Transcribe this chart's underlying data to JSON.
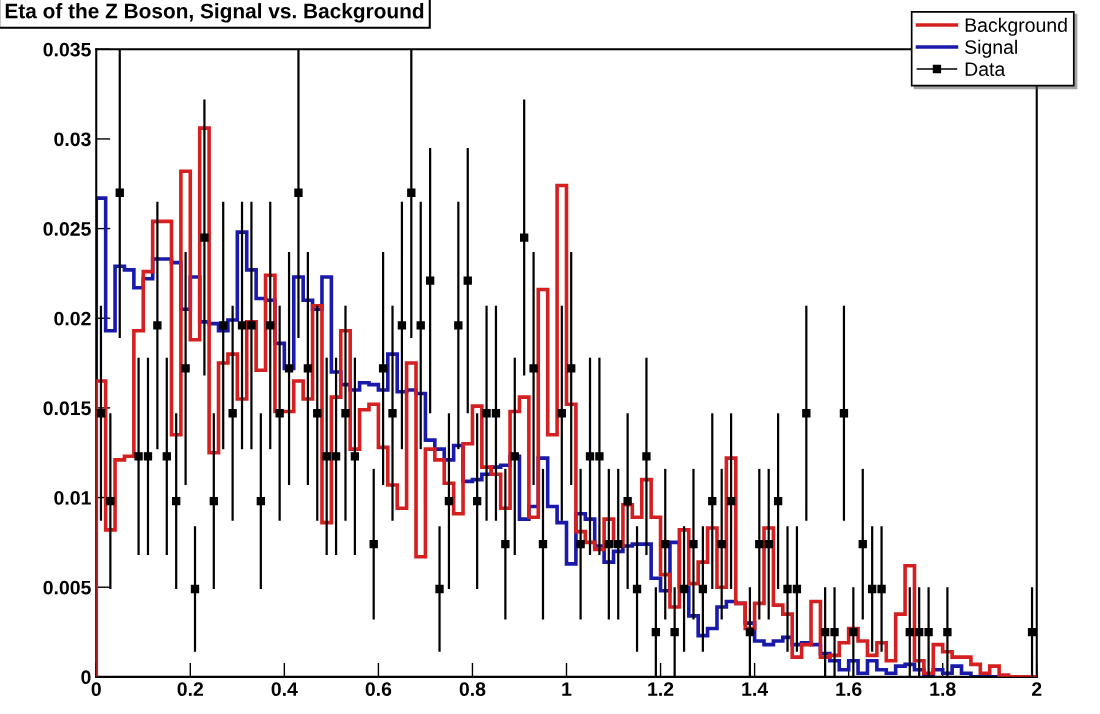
{
  "chart_data": {
    "type": "histogram",
    "title": "Eta of the Z Boson, Signal vs. Background",
    "bins": [
      0,
      0.02,
      0.04,
      0.06,
      0.08,
      0.1,
      0.12,
      0.14,
      0.16,
      0.18,
      0.2,
      0.22,
      0.24,
      0.26,
      0.28,
      0.3,
      0.32,
      0.34,
      0.36,
      0.38,
      0.4,
      0.42,
      0.44,
      0.46,
      0.48,
      0.5,
      0.52,
      0.54,
      0.56,
      0.58,
      0.6,
      0.62,
      0.64,
      0.66,
      0.68,
      0.7,
      0.72,
      0.74,
      0.76,
      0.78,
      0.8,
      0.82,
      0.84,
      0.86,
      0.88,
      0.9,
      0.92,
      0.94,
      0.96,
      0.98,
      1.0,
      1.02,
      1.04,
      1.06,
      1.08,
      1.1,
      1.12,
      1.14,
      1.16,
      1.18,
      1.2,
      1.22,
      1.24,
      1.26,
      1.28,
      1.3,
      1.32,
      1.34,
      1.36,
      1.38,
      1.4,
      1.42,
      1.44,
      1.46,
      1.48,
      1.5,
      1.52,
      1.54,
      1.56,
      1.58,
      1.6,
      1.62,
      1.64,
      1.66,
      1.68,
      1.7,
      1.72,
      1.74,
      1.76,
      1.78,
      1.8,
      1.82,
      1.84,
      1.86,
      1.88,
      1.9,
      1.92,
      1.94,
      1.96,
      1.98,
      2.0
    ],
    "series": [
      {
        "name": "Background",
        "color": "#d42020",
        "values": [
          0.0165,
          0.0082,
          0.0121,
          0.0123,
          0.0193,
          0.0226,
          0.0254,
          0.0254,
          0.0135,
          0.0282,
          0.0188,
          0.0306,
          0.0125,
          0.0175,
          0.018,
          0.0155,
          0.0198,
          0.0171,
          0.0224,
          0.0148,
          0.0148,
          0.0165,
          0.0155,
          0.0207,
          0.0086,
          0.0156,
          0.0193,
          0.0127,
          0.0149,
          0.0152,
          0.0128,
          0.0107,
          0.0094,
          0.0175,
          0.0067,
          0.0127,
          0.0121,
          0.0108,
          0.0091,
          0.013,
          0.0151,
          0.0117,
          0.0113,
          0.0094,
          0.0148,
          0.0156,
          0.0089,
          0.0216,
          0.0135,
          0.0274,
          0.0152,
          0.0081,
          0.0075,
          0.0071,
          0.0088,
          0.0073,
          0.0096,
          0.0089,
          0.011,
          0.0089,
          0.0057,
          0.0039,
          0.0082,
          0.0052,
          0.0064,
          0.0083,
          0.005,
          0.0122,
          0.0041,
          0.0027,
          0.0041,
          0.0083,
          0.004,
          0.0035,
          0.0011,
          0.0018,
          0.0042,
          0.0011,
          0.0012,
          0.0019,
          0.0027,
          0.002,
          0.0012,
          0.0019,
          0.0009,
          0.0035,
          0.0062,
          0.0009,
          0.0002,
          0.0018,
          0.0014,
          0.0011,
          0.0011,
          0.0007,
          0.0002,
          0.0006,
          0.0001,
          0,
          0,
          0
        ]
      },
      {
        "name": "Signal",
        "color": "#1a1aaa",
        "values": [
          0.0267,
          0.0193,
          0.0229,
          0.0227,
          0.0217,
          0.0222,
          0.0233,
          0.0233,
          0.0231,
          0.0205,
          0.0223,
          0.0198,
          0.0197,
          0.0193,
          0.0199,
          0.0248,
          0.0227,
          0.0211,
          0.021,
          0.0186,
          0.0172,
          0.0223,
          0.021,
          0.0205,
          0.0223,
          0.017,
          0.0163,
          0.016,
          0.0164,
          0.0163,
          0.016,
          0.018,
          0.0159,
          0.016,
          0.0158,
          0.0132,
          0.0127,
          0.0121,
          0.0129,
          0.0109,
          0.011,
          0.0113,
          0.0117,
          0.0118,
          0.0123,
          0.0088,
          0.0095,
          0.0122,
          0.0095,
          0.0086,
          0.0063,
          0.0091,
          0.0088,
          0.0073,
          0.0064,
          0.007,
          0.0073,
          0.0074,
          0.0074,
          0.0055,
          0.0048,
          0.0075,
          0.005,
          0.0034,
          0.0023,
          0.0027,
          0.0039,
          0.0042,
          0.0041,
          0.003,
          0.002,
          0.0018,
          0.002,
          0.0022,
          0.0018,
          0.0019,
          0.0018,
          0.0013,
          0.0009,
          0.0004,
          0.0009,
          0.0002,
          0.0009,
          0.0004,
          0.0002,
          0.0006,
          0.0007,
          0.0004,
          0.0001,
          0.0004,
          0.0002,
          0.0006,
          0.0002,
          0,
          0,
          0,
          0,
          0,
          0,
          0
        ]
      },
      {
        "name": "Data",
        "type": "scatter",
        "color": "#000000",
        "marker": "square",
        "x": [
          0.01,
          0.03,
          0.05,
          0.09,
          0.11,
          0.13,
          0.15,
          0.17,
          0.19,
          0.21,
          0.23,
          0.25,
          0.27,
          0.29,
          0.31,
          0.33,
          0.35,
          0.37,
          0.39,
          0.41,
          0.43,
          0.45,
          0.47,
          0.49,
          0.51,
          0.53,
          0.55,
          0.59,
          0.61,
          0.63,
          0.65,
          0.67,
          0.69,
          0.71,
          0.73,
          0.75,
          0.77,
          0.79,
          0.81,
          0.83,
          0.85,
          0.87,
          0.89,
          0.91,
          0.93,
          0.95,
          0.99,
          1.01,
          1.03,
          1.05,
          1.07,
          1.09,
          1.11,
          1.13,
          1.15,
          1.17,
          1.19,
          1.21,
          1.23,
          1.25,
          1.27,
          1.29,
          1.31,
          1.33,
          1.35,
          1.39,
          1.41,
          1.43,
          1.45,
          1.47,
          1.49,
          1.51,
          1.55,
          1.57,
          1.59,
          1.61,
          1.63,
          1.65,
          1.67,
          1.73,
          1.75,
          1.77,
          1.81,
          1.99
        ],
        "values": [
          0.0147,
          0.0098,
          0.027,
          0.0123,
          0.0123,
          0.0196,
          0.0123,
          0.0098,
          0.0172,
          0.0049,
          0.0245,
          0.0098,
          0.0196,
          0.0147,
          0.0196,
          0.0196,
          0.0098,
          0.0196,
          0.0147,
          0.0172,
          0.027,
          0.0172,
          0.0147,
          0.0123,
          0.0123,
          0.0147,
          0.0123,
          0.0074,
          0.0172,
          0.0147,
          0.0196,
          0.027,
          0.0196,
          0.0221,
          0.0049,
          0.0098,
          0.0196,
          0.0221,
          0.0098,
          0.0147,
          0.0147,
          0.0074,
          0.0123,
          0.0245,
          0.0172,
          0.0074,
          0.0147,
          0.0172,
          0.0074,
          0.0123,
          0.0123,
          0.0074,
          0.0074,
          0.0098,
          0.0049,
          0.0123,
          0.0025,
          0.0074,
          0.0025,
          0.0049,
          0.0074,
          0.0049,
          0.0098,
          0.0074,
          0.0098,
          0.0025,
          0.0074,
          0.0074,
          0.0098,
          0.0049,
          0.0049,
          0.0147,
          0.0025,
          0.0025,
          0.0147,
          0.0025,
          0.0074,
          0.0049,
          0.0049,
          0.0025,
          0.0025,
          0.0025,
          0.0025,
          0.0025
        ],
        "errors": [
          0.006,
          0.0049,
          [
            0.0189,
            0.035
          ],
          0.0055,
          0.0055,
          0.0069,
          0.0055,
          0.0049,
          0.0065,
          0.0035,
          0.0077,
          0.0049,
          0.0069,
          0.006,
          0.0069,
          0.0069,
          0.0049,
          0.0069,
          0.006,
          0.0065,
          [
            0.0189,
            0.035
          ],
          0.0065,
          0.006,
          0.0055,
          0.0055,
          0.006,
          0.0055,
          0.0042,
          0.0065,
          0.006,
          0.0069,
          [
            0.0189,
            0.035
          ],
          0.0069,
          0.0074,
          0.0035,
          0.0049,
          0.0069,
          0.0074,
          0.0049,
          0.006,
          0.006,
          0.0042,
          0.0055,
          0.0077,
          0.0065,
          0.0042,
          0.006,
          0.0065,
          0.0042,
          0.0055,
          0.0055,
          0.0042,
          0.0042,
          0.0049,
          0.0035,
          0.0055,
          0.0025,
          0.0042,
          0.0025,
          0.0035,
          0.0042,
          0.0035,
          0.0049,
          0.0042,
          0.0049,
          0.0025,
          0.0042,
          0.0042,
          0.0049,
          0.0035,
          0.0035,
          0.006,
          0.0025,
          0.0025,
          0.006,
          0.0025,
          0.0042,
          0.0035,
          0.0035,
          0.0025,
          0.0025,
          0.0025,
          0.0025,
          0.0025
        ]
      }
    ],
    "xlim": [
      0,
      2
    ],
    "ylim": [
      0,
      0.035
    ],
    "xticks": [
      0,
      0.2,
      0.4,
      0.6,
      0.8,
      1,
      1.2,
      1.4,
      1.6,
      1.8,
      2
    ],
    "yticks": [
      0,
      0.005,
      0.01,
      0.015,
      0.02,
      0.025,
      0.03,
      0.035
    ],
    "grid": false,
    "legend": "top right"
  }
}
